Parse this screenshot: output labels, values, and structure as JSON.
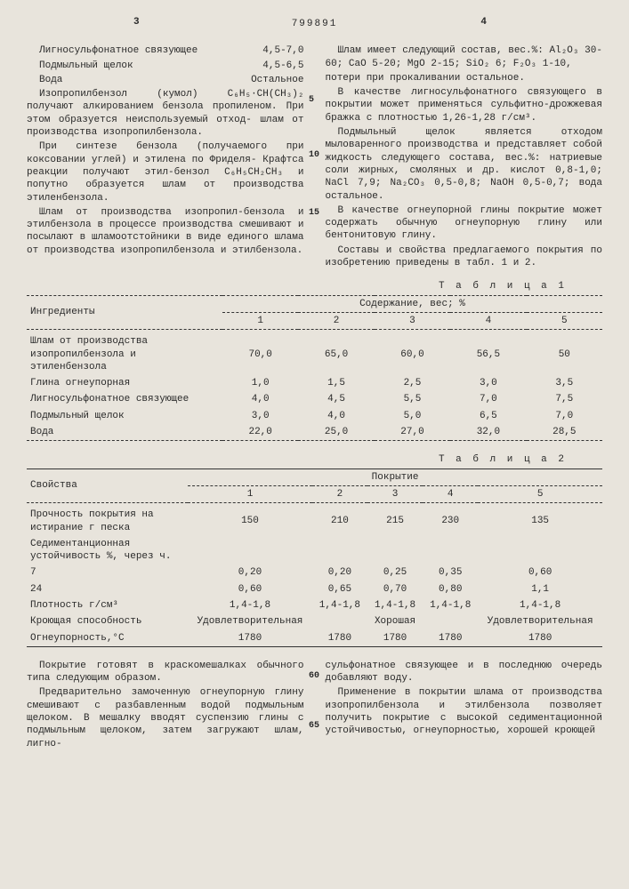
{
  "page_left": "3",
  "page_right": "4",
  "doc_number": "799891",
  "left_col": {
    "binder_row": {
      "label": "Лигносульфонатное связующее",
      "val": "4,5-7,0"
    },
    "lye_row": {
      "label": "Подмыльный щелок",
      "val": "4,5-6,5"
    },
    "water_row": {
      "label": "Вода",
      "val": "Остальное"
    },
    "p1": "Изопропилбензол (кумол) C₆H₅·CH(CH₃)₂ получают алкированием бензола пропиленом. При этом образуется неиспользуемый отход- шлам от производства изопропилбензола.",
    "p2": "При синтезе бензола (получаемого при коксовании углей) и этилена по Фриделя- Крафтса реакции получают этил-бензол C₆H₅CH₂CH₃ и попутно образуется шлам от производства этиленбензола.",
    "p3": "Шлам от производства изопропил-бензола и этилбензола в процессе производства смешивают и посылают в шламоотстойники в виде единого шлама от производства изопропилбензола и этилбензола."
  },
  "right_col": {
    "p1": "Шлам имеет следующий состав, вес.%: Al₂O₃ 30-60; CaO 5-20; MgO 2-15; SiO₂ 6; F₂O₃ 1-10,",
    "p1b": "потери при прокаливании остальное.",
    "p2": "В качестве лигносульфонатного связующего в покрытии может применяться сульфитно-дрожжевая бражка с плотностью 1,26-1,28 г/см³.",
    "p3": "Подмыльный щелок является отходом мыловаренного производства и представляет собой жидкость следующего состава, вес.%: натриевые соли жирных, смоляных и др. кислот 0,8-1,0; NaCl 7,9; Na₂CO₃ 0,5-0,8; NaOH 0,5-0,7; вода остальное.",
    "p4": "В качестве огнеупорной глины покрытие может содержать обычную огнеупорную глину или бентонитовую глину.",
    "p5": "Составы и свойства предлагаемого покрытия по изобретению приведены в табл. 1 и 2."
  },
  "line_markers": {
    "m5": "5",
    "m10": "10",
    "m15": "15"
  },
  "table1": {
    "label": "Т а б л и ц а  1",
    "header_main": "Содержание, вес; %",
    "header_ing": "Ингредиенты",
    "cols": [
      "1",
      "2",
      "3",
      "4",
      "5"
    ],
    "rows": [
      {
        "lbl": "Шлам от производства изопропилбензола и этиленбензола",
        "v": [
          "70,0",
          "65,0",
          "60,0",
          "56,5",
          "50"
        ]
      },
      {
        "lbl": "Глина огнеупорная",
        "v": [
          "1,0",
          "1,5",
          "2,5",
          "3,0",
          "3,5"
        ]
      },
      {
        "lbl": "Лигносульфонатное связующее",
        "v": [
          "4,0",
          "4,5",
          "5,5",
          "7,0",
          "7,5"
        ]
      },
      {
        "lbl": "Подмыльный щелок",
        "v": [
          "3,0",
          "4,0",
          "5,0",
          "6,5",
          "7,0"
        ]
      },
      {
        "lbl": "Вода",
        "v": [
          "22,0",
          "25,0",
          "27,0",
          "32,0",
          "28,5"
        ]
      }
    ]
  },
  "table2": {
    "label": "Т а б л и ц а  2",
    "header_main": "Покрытие",
    "header_prop": "Свойства",
    "cols": [
      "1",
      "2",
      "3",
      "4",
      "5"
    ],
    "rows": [
      {
        "lbl": "Прочность покрытия на истирание г песка",
        "v": [
          "150",
          "210",
          "215",
          "230",
          "135"
        ]
      },
      {
        "lbl": "Седиментанционная устойчивость %, через ч.",
        "sub": [
          {
            "lbl": "7",
            "v": [
              "0,20",
              "0,20",
              "0,25",
              "0,35",
              "0,60"
            ]
          },
          {
            "lbl": "24",
            "v": [
              "0,60",
              "0,65",
              "0,70",
              "0,80",
              "1,1"
            ]
          }
        ]
      },
      {
        "lbl": "Плотность г/см³",
        "v": [
          "1,4-1,8",
          "1,4-1,8",
          "1,4-1,8",
          "1,4-1,8",
          "1,4-1,8"
        ]
      },
      {
        "lbl": "Кроющая способность",
        "v": [
          "Удовлетворительная",
          "",
          "Хорошая",
          "",
          "Удовлетворительная"
        ]
      },
      {
        "lbl": "Огнеупорность,°С",
        "v": [
          "1780",
          "1780",
          "1780",
          "1780",
          "1780"
        ]
      }
    ]
  },
  "bottom_left": {
    "p1": "Покрытие готовят в краскомешалках обычного типа следующим образом.",
    "p2": "Предварительно замоченную огнеупорную глину смешивают с разбавленным водой подмыльным щелоком. В мешалку вводят суспензию глины с подмыльным щелоком, затем загружают шлам, лигно-"
  },
  "bottom_right": {
    "p1": "сульфонатное связующее и в последнюю очередь добавляют воду.",
    "p2": "Применение в покрытии шлама от производства изопропилбензола и этилбензола позволяет получить покрытие с высокой седиментационной устойчивостью, огнеупорностью, хорошей кроющей"
  },
  "bottom_markers": {
    "m60": "60",
    "m65": "65"
  }
}
